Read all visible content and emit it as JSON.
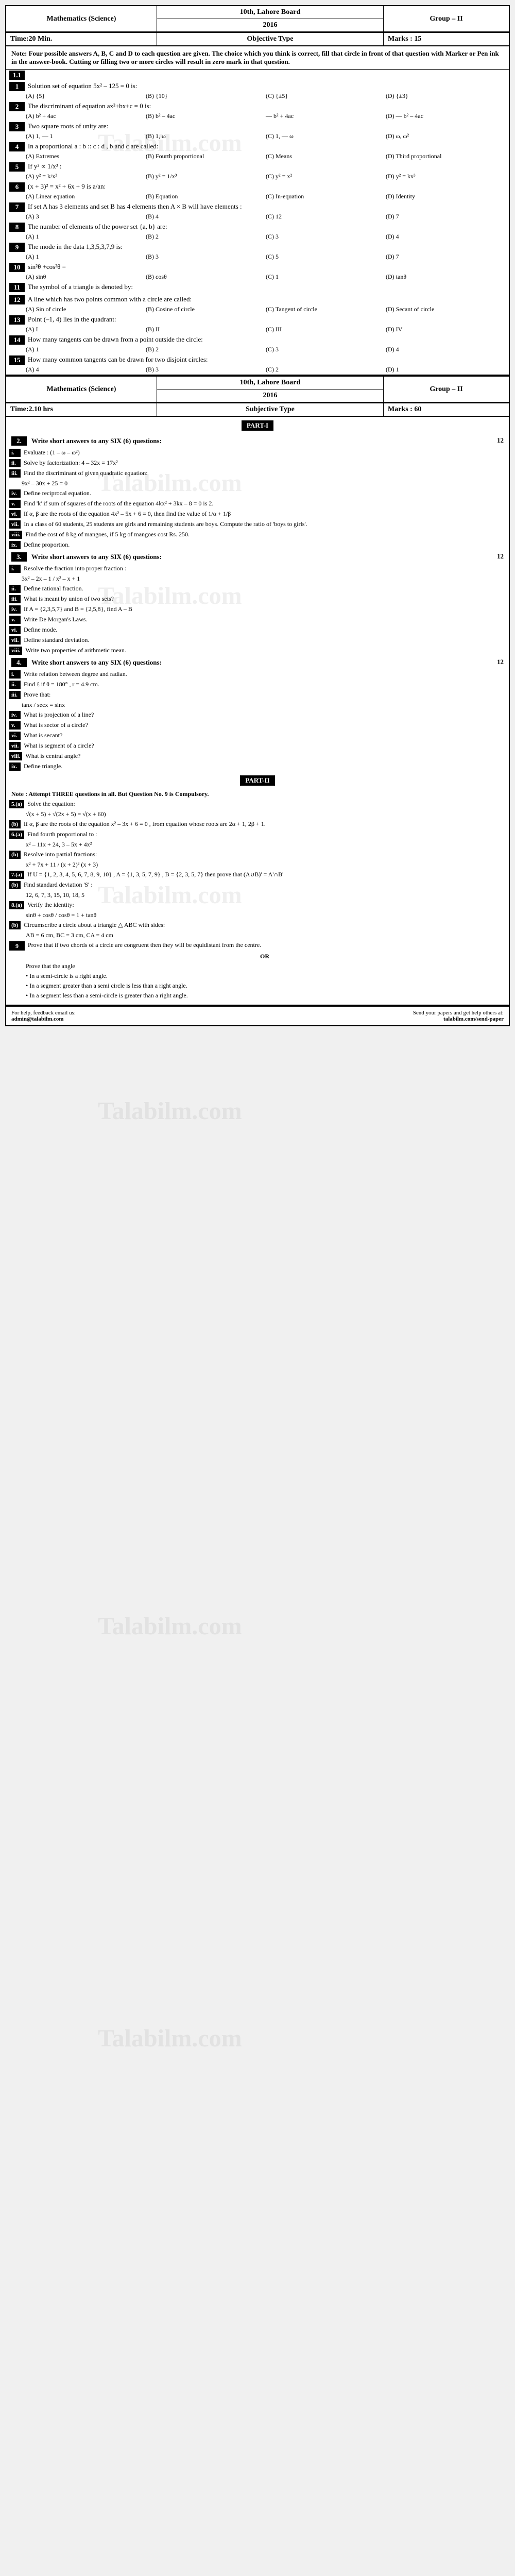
{
  "header1": {
    "subject": "Mathematics (Science)",
    "class": "10th",
    "board": "Lahore Board",
    "year": "2016",
    "group": "Group – II"
  },
  "objective": {
    "time": "Time:20 Min.",
    "type": "Objective Type",
    "marks": "Marks : 15",
    "note": "Note: Four possible answers A, B, C and D to each question are given. The choice which you think is correct, fill that circle in front of that question with Marker or Pen ink in the answer-book. Cutting or filling two or more circles will result in zero mark in that question."
  },
  "mcq_label": "1.1",
  "mcqs": [
    {
      "n": "1",
      "q": "Solution set of equation 5x² – 125 = 0 is:",
      "opts": [
        "(A) {5}",
        "(B) {10}",
        "(C) {±5}",
        "(D) {±3}"
      ]
    },
    {
      "n": "2",
      "q": "The discriminant of equation ax²+bx+c = 0 is:",
      "opts": [
        "(A) b² + 4ac",
        "(B) b² – 4ac",
        "— b² + 4ac",
        "(D) — b² – 4ac"
      ]
    },
    {
      "n": "3",
      "q": "Two square roots of unity are:",
      "opts": [
        "(A) 1, — 1",
        "(B) 1, ω",
        "(C) 1, — ω",
        "(D) ω, ω²"
      ]
    },
    {
      "n": "4",
      "q": "In a proportional a : b :: c : d , b and c are called:",
      "opts": [
        "(A) Extremes",
        "(B) Fourth proportional",
        "(C) Means",
        "(D) Third proportional"
      ]
    },
    {
      "n": "5",
      "q": "If y² ∝ 1/x³ :",
      "opts": [
        "(A) y² = k/x³",
        "(B) y² = 1/x³",
        "(C) y² = x²",
        "(D) y² = kx³"
      ]
    },
    {
      "n": "6",
      "q": "(x + 3)² = x² + 6x + 9 is a/an:",
      "opts": [
        "(A) Linear equation",
        "(B) Equation",
        "(C) In-equation",
        "(D) Identity"
      ]
    },
    {
      "n": "7",
      "q": "If set A has 3 elements and set B has 4 elements then A × B will have elements :",
      "opts": [
        "(A) 3",
        "(B) 4",
        "(C) 12",
        "(D) 7"
      ]
    },
    {
      "n": "8",
      "q": "The number of elements of the power set {a, b} are:",
      "opts": [
        "(A) 1",
        "(B) 2",
        "(C) 3",
        "(D) 4"
      ]
    },
    {
      "n": "9",
      "q": "The mode in the data 1,3,5,3,7,9 is:",
      "opts": [
        "(A) 1",
        "(B) 3",
        "(C) 5",
        "(D) 7"
      ]
    },
    {
      "n": "10",
      "q": "sin²θ +cos²θ =",
      "opts": [
        "(A) sinθ",
        "(B) cosθ",
        "(C) 1",
        "(D) tanθ"
      ]
    },
    {
      "n": "11",
      "q": "The symbol of a triangle is denoted by:",
      "opts": [
        "",
        "",
        "",
        ""
      ]
    },
    {
      "n": "12",
      "q": "A line which has two points common with a circle are called:",
      "opts": [
        "(A) Sin of circle",
        "(B) Cosine of circle",
        "(C) Tangent of circle",
        "(D) Secant of circle"
      ]
    },
    {
      "n": "13",
      "q": "Point (–1, 4) lies in the quadrant:",
      "opts": [
        "(A) I",
        "(B) II",
        "(C) III",
        "(D) IV"
      ]
    },
    {
      "n": "14",
      "q": "How many tangents can be drawn from a point outside the circle:",
      "opts": [
        "(A) 1",
        "(B) 2",
        "(C) 3",
        "(D) 4"
      ]
    },
    {
      "n": "15",
      "q": "How many common tangents can be drawn for two disjoint circles:",
      "opts": [
        "(A) 4",
        "(B) 3",
        "(C) 2",
        "(D) 1"
      ]
    }
  ],
  "subjective": {
    "time": "Time:2.10 hrs",
    "type": "Subjective Type",
    "marks": "Marks : 60",
    "part1": "PART-I",
    "part2": "PART-II"
  },
  "q2": {
    "num": "2.",
    "inst": "Write short answers to any SIX (6) questions:",
    "marks": "12",
    "items": [
      {
        "l": "i.",
        "t": "Evaluate : (1 – ω – ω²)"
      },
      {
        "l": "ii.",
        "t": "Solve by factorization: 4 – 32x = 17x²"
      },
      {
        "l": "iii.",
        "t": "Find the discriminant of given quadratic equation:"
      },
      {
        "l": "",
        "t": "9x² – 30x + 25 = 0"
      },
      {
        "l": "iv.",
        "t": "Define reciprocal equation."
      },
      {
        "l": "v.",
        "t": "Find 'k' if sum of squares of the roots of the equation 4kx² + 3kx – 8 = 0 is 2."
      },
      {
        "l": "vi.",
        "t": "If α, β are the roots of the equation 4x² – 5x + 6 = 0, then find the value of 1/α + 1/β"
      },
      {
        "l": "vii.",
        "t": "In a class of 60 students, 25 students are girls and remaining students are boys. Compute the ratio of 'boys to girls'."
      },
      {
        "l": "viii.",
        "t": "Find the cost of 8 kg of mangoes, if 5 kg of mangoes cost Rs. 250."
      },
      {
        "l": "ix.",
        "t": "Define proportion."
      }
    ]
  },
  "q3": {
    "num": "3.",
    "inst": "Write short answers to any SIX (6) questions:",
    "marks": "12",
    "items": [
      {
        "l": "i.",
        "t": "Resolve the fraction into proper fraction :"
      },
      {
        "l": "",
        "t": "3x² – 2x – 1 / x² – x + 1"
      },
      {
        "l": "ii.",
        "t": "Define rational fraction."
      },
      {
        "l": "iii.",
        "t": "What is meant by union of two sets?"
      },
      {
        "l": "iv.",
        "t": "If A = {2,3,5,7} and B = {2,5,8}, find A – B"
      },
      {
        "l": "v.",
        "t": "Write De Morgan's Laws."
      },
      {
        "l": "vi.",
        "t": "Define mode."
      },
      {
        "l": "vii.",
        "t": "Define standard deviation."
      },
      {
        "l": "viii.",
        "t": "Write two properties of arithmetic mean."
      }
    ]
  },
  "q4": {
    "num": "4.",
    "inst": "Write short answers to any SIX (6) questions:",
    "marks": "12",
    "items": [
      {
        "l": "i.",
        "t": "Write relation between degree and radian."
      },
      {
        "l": "ii.",
        "t": "Find ℓ if θ = 180° , r = 4.9 cm."
      },
      {
        "l": "iii.",
        "t": "Prove that:"
      },
      {
        "l": "",
        "t": "tanx / secx = sinx"
      },
      {
        "l": "iv.",
        "t": "What is projection of a line?"
      },
      {
        "l": "v.",
        "t": "What is sector of a circle?"
      },
      {
        "l": "vi.",
        "t": "What is secant?"
      },
      {
        "l": "vii.",
        "t": "What is segment of a circle?"
      },
      {
        "l": "viii.",
        "t": "What is central angle?"
      },
      {
        "l": "ix.",
        "t": "Define triangle."
      }
    ]
  },
  "part2_note": "Note : Attempt THREE questions in all. But Question No. 9 is Compulsory.",
  "q5": {
    "a": {
      "l": "5.(a)",
      "t": "Solve the equation:",
      "eq": "√(x + 5) + √(2x + 5) = √(x + 60)"
    },
    "b": {
      "l": "(b)",
      "t": "If α, β are the roots of the equation x² – 3x + 6 = 0 , from equation whose roots are 2α + 1, 2β + 1."
    }
  },
  "q6": {
    "a": {
      "l": "6.(a)",
      "t": "Find fourth proportional to :",
      "eq": "x² – 11x + 24, 3 – 5x + 4x²"
    },
    "b": {
      "l": "(b)",
      "t": "Resolve into partial fractions:",
      "eq": "x² + 7x + 11 / (x + 2)² (x + 3)"
    }
  },
  "q7": {
    "a": {
      "l": "7.(a)",
      "t": "If U = {1, 2, 3, 4, 5, 6, 7, 8, 9, 10} , A = {1, 3, 5, 7, 9} , B = {2, 3, 5, 7} then prove that (A∪B)' = A'∩B'"
    },
    "b": {
      "l": "(b)",
      "t": "Find standard deviation 'S' :",
      "eq": "12, 6, 7, 3, 15, 10, 18, 5"
    }
  },
  "q8": {
    "a": {
      "l": "8.(a)",
      "t": "Verify the identity:",
      "eq": "sinθ + cosθ / cosθ = 1 + tanθ"
    },
    "b": {
      "l": "(b)",
      "t": "Circumscribe a circle about a triangle △ ABC with sides:",
      "eq": "AB = 6 cm, BC = 3 cm, CA = 4 cm"
    }
  },
  "q9": {
    "num": "9",
    "t": "Prove that if two chords of a circle are congruent then they will be equidistant from the centre.",
    "or": "OR",
    "t2": "Prove that the angle",
    "items": [
      "In a semi-circle is a right angle.",
      "In a segment greater than a semi circle is less than a right angle.",
      "In a segment less than a semi-circle is greater than a right angle."
    ]
  },
  "footer": {
    "left_label": "For help, feedback email us:",
    "left_email": "admin@talabilm.com",
    "right_label": "Send your papers and get help others at:",
    "right_url": "talabilm.com/send-paper"
  },
  "watermark": "Talabilm.com"
}
